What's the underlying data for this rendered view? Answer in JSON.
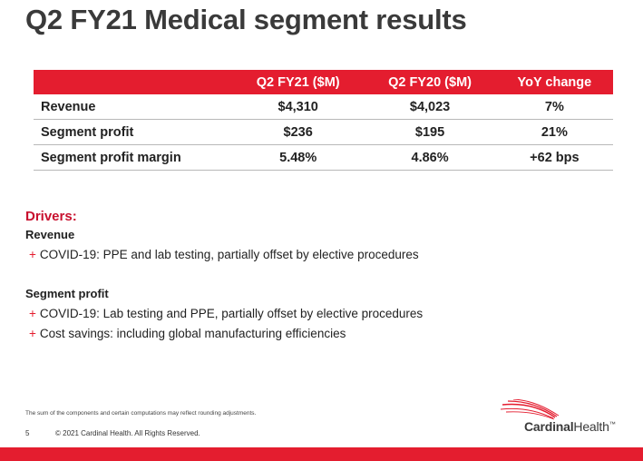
{
  "title": "Q2 FY21 Medical segment results",
  "table": {
    "headers": [
      "Q2 FY21 ($M)",
      "Q2 FY20 ($M)",
      "YoY change"
    ],
    "rows": [
      {
        "label": "Revenue",
        "values": [
          "$4,310",
          "$4,023",
          "7%"
        ]
      },
      {
        "label": "Segment profit",
        "values": [
          "$236",
          "$195",
          "21%"
        ]
      },
      {
        "label": "Segment profit margin",
        "values": [
          "5.48%",
          "4.86%",
          "+62 bps"
        ]
      }
    ]
  },
  "drivers": {
    "heading": "Drivers:",
    "revenue_heading": "Revenue",
    "revenue_items": [
      "COVID-19: PPE and lab testing, partially offset by elective procedures"
    ],
    "profit_heading": "Segment profit",
    "profit_items": [
      "COVID-19: Lab testing and PPE, partially offset by elective procedures",
      "Cost savings: including global manufacturing efficiencies"
    ],
    "bullet_symbol": "+"
  },
  "footer": {
    "note": "The sum of the components and certain computations may reflect rounding adjustments.",
    "page_number": "5",
    "copyright": "© 2021 Cardinal Health. All Rights Reserved.",
    "logo_bold": "Cardinal",
    "logo_regular": "Health",
    "logo_tm": "™"
  },
  "colors": {
    "accent": "#e41d2f",
    "title": "#3a3a3a",
    "drivers": "#c8102e"
  }
}
